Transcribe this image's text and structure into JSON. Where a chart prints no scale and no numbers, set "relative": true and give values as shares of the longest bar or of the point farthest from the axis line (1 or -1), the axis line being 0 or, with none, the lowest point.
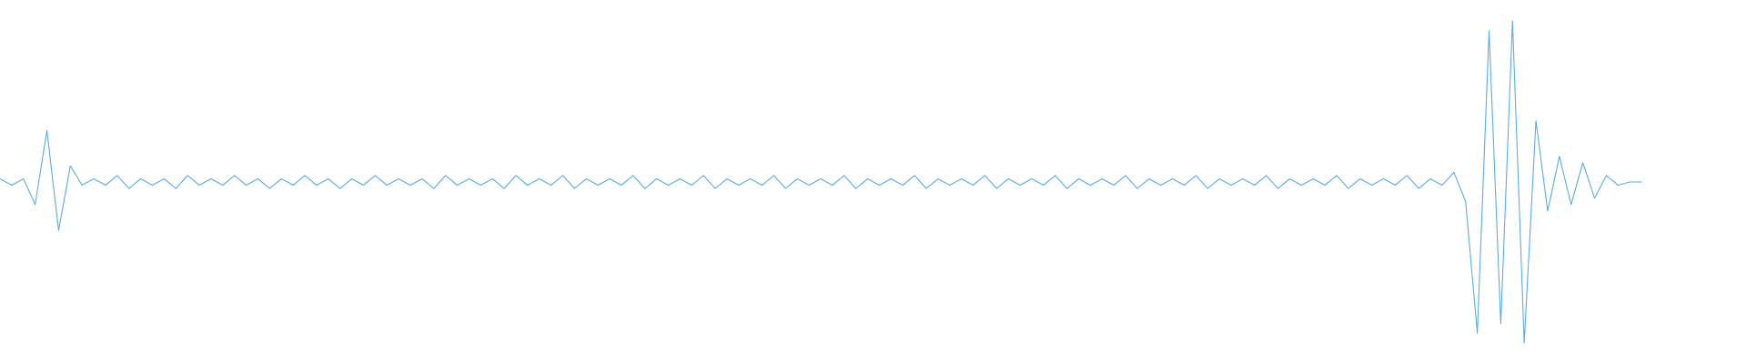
{
  "chart_data": {
    "type": "line",
    "relative": true,
    "categories": [
      null,
      null,
      null,
      null,
      null,
      null,
      null,
      null,
      null,
      null,
      null,
      null,
      null,
      null,
      null,
      null,
      null,
      null,
      null,
      null,
      null,
      null,
      null,
      null,
      null,
      null,
      null,
      null,
      null,
      null,
      null,
      null,
      null,
      null,
      null,
      null,
      null,
      null,
      null,
      null,
      null,
      null,
      null,
      null,
      null,
      null,
      null,
      null,
      null,
      null,
      null,
      null,
      null,
      null,
      null,
      null,
      null,
      null,
      null,
      null,
      null,
      null,
      null,
      null,
      null,
      null,
      null,
      null,
      null,
      null,
      null,
      null,
      null,
      null,
      null,
      null,
      null,
      null,
      null,
      null,
      null,
      null,
      null,
      null,
      null,
      null,
      null,
      null,
      null,
      null,
      null,
      null,
      null,
      null,
      null,
      null,
      null,
      null,
      null,
      null,
      null,
      null,
      null,
      null,
      null,
      null,
      null,
      null,
      null,
      null,
      null,
      null,
      null,
      null,
      null,
      null,
      null,
      null,
      null,
      null,
      null,
      null,
      null,
      null,
      null,
      null,
      null,
      null,
      null,
      null,
      null,
      null,
      null,
      null,
      null,
      null,
      null,
      null,
      null,
      null,
      null,
      null,
      null,
      null,
      null,
      null,
      null,
      null,
      null,
      null
    ],
    "series": [
      {
        "color": "#5dade2",
        "values": [
          0.51,
          0.49,
          0.51,
          0.43,
          0.66,
          0.35,
          0.55,
          0.49,
          0.51,
          0.49,
          0.52,
          0.48,
          0.51,
          0.49,
          0.51,
          0.48,
          0.52,
          0.49,
          0.51,
          0.49,
          0.52,
          0.49,
          0.51,
          0.48,
          0.51,
          0.49,
          0.52,
          0.49,
          0.51,
          0.48,
          0.51,
          0.49,
          0.52,
          0.49,
          0.51,
          0.49,
          0.51,
          0.48,
          0.52,
          0.49,
          0.51,
          0.49,
          0.51,
          0.48,
          0.52,
          0.49,
          0.51,
          0.49,
          0.52,
          0.48,
          0.51,
          0.49,
          0.51,
          0.49,
          0.52,
          0.48,
          0.51,
          0.49,
          0.51,
          0.49,
          0.52,
          0.48,
          0.51,
          0.49,
          0.51,
          0.49,
          0.52,
          0.48,
          0.51,
          0.49,
          0.51,
          0.49,
          0.52,
          0.48,
          0.51,
          0.49,
          0.51,
          0.49,
          0.52,
          0.48,
          0.51,
          0.49,
          0.51,
          0.49,
          0.52,
          0.48,
          0.51,
          0.49,
          0.51,
          0.49,
          0.52,
          0.48,
          0.51,
          0.49,
          0.51,
          0.49,
          0.52,
          0.48,
          0.51,
          0.49,
          0.51,
          0.49,
          0.52,
          0.48,
          0.51,
          0.49,
          0.51,
          0.49,
          0.52,
          0.48,
          0.51,
          0.49,
          0.51,
          0.49,
          0.52,
          0.48,
          0.51,
          0.49,
          0.51,
          0.49,
          0.52,
          0.48,
          0.51,
          0.49,
          0.53,
          0.44,
          0.03,
          0.97,
          0.06,
          1.0,
          0.0,
          0.69,
          0.41,
          0.58,
          0.43,
          0.56,
          0.45,
          0.52,
          0.49,
          0.5,
          0.5,
          null,
          null,
          null,
          null,
          null,
          null,
          null,
          null,
          null
        ]
      }
    ]
  }
}
